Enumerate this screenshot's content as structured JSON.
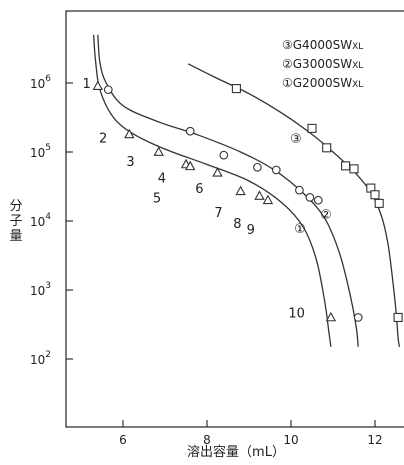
{
  "chart_data": {
    "type": "line",
    "xlabel": "溶出容量（mL）",
    "ylabel": "分子量",
    "xlim": [
      4.7,
      12.6
    ],
    "ylim_log10": [
      1.6,
      7.0
    ],
    "x_ticks": [
      "6",
      "8",
      "10",
      "12"
    ],
    "y_ticks": [
      {
        "base": "10",
        "exp": "6"
      },
      {
        "base": "10",
        "exp": "5"
      },
      {
        "base": "10",
        "exp": "4"
      },
      {
        "base": "10",
        "exp": "3"
      },
      {
        "base": "10",
        "exp": "2"
      }
    ],
    "legend": [
      {
        "prefix": "③G4000SW",
        "suffix": "XL"
      },
      {
        "prefix": "②G3000SW",
        "suffix": "XL"
      },
      {
        "prefix": "①G2000SW",
        "suffix": "XL"
      }
    ],
    "series": [
      {
        "name": "①G2000SW",
        "marker": "triangle",
        "curve_label": "①",
        "points": [
          {
            "x": 5.4,
            "y": 900000,
            "label": "1"
          },
          {
            "x": 6.15,
            "y": 180000,
            "label": "2"
          },
          {
            "x": 6.85,
            "y": 100000,
            "label": "3"
          },
          {
            "x": 7.5,
            "y": 66000,
            "label": "4"
          },
          {
            "x": 7.6,
            "y": 62000,
            "label": "5"
          },
          {
            "x": 8.25,
            "y": 50000,
            "label": "6"
          },
          {
            "x": 8.8,
            "y": 27000,
            "label": "7"
          },
          {
            "x": 9.25,
            "y": 23000,
            "label": "8"
          },
          {
            "x": 9.45,
            "y": 20000,
            "label": "9"
          },
          {
            "x": 10.95,
            "y": 400,
            "label": "10"
          }
        ],
        "curve": [
          [
            5.3,
            5000000
          ],
          [
            5.35,
            2000000
          ],
          [
            5.45,
            800000
          ],
          [
            5.75,
            330000
          ],
          [
            6.2,
            190000
          ],
          [
            7.0,
            110000
          ],
          [
            8.0,
            66000
          ],
          [
            9.0,
            38000
          ],
          [
            9.8,
            18000
          ],
          [
            10.3,
            8000
          ],
          [
            10.6,
            2800
          ],
          [
            10.8,
            700
          ],
          [
            10.9,
            250
          ],
          [
            10.95,
            150
          ]
        ]
      },
      {
        "name": "②G3000SW",
        "marker": "circle",
        "curve_label": "②",
        "points": [
          {
            "x": 5.65,
            "y": 800000
          },
          {
            "x": 7.6,
            "y": 200000
          },
          {
            "x": 8.4,
            "y": 90000
          },
          {
            "x": 9.2,
            "y": 60000
          },
          {
            "x": 9.65,
            "y": 55000
          },
          {
            "x": 10.2,
            "y": 28000
          },
          {
            "x": 10.45,
            "y": 22000
          },
          {
            "x": 10.65,
            "y": 20000
          },
          {
            "x": 11.6,
            "y": 400
          }
        ],
        "curve": [
          [
            5.4,
            5000000
          ],
          [
            5.45,
            2000000
          ],
          [
            5.6,
            1000000
          ],
          [
            6.0,
            470000
          ],
          [
            6.8,
            280000
          ],
          [
            7.8,
            175000
          ],
          [
            8.8,
            100000
          ],
          [
            9.6,
            55000
          ],
          [
            10.3,
            25000
          ],
          [
            10.8,
            11000
          ],
          [
            11.15,
            3500
          ],
          [
            11.4,
            900
          ],
          [
            11.55,
            300
          ],
          [
            11.6,
            150
          ]
        ]
      },
      {
        "name": "③G4000SW",
        "marker": "square",
        "curve_label": "③",
        "points": [
          {
            "x": 8.7,
            "y": 830000
          },
          {
            "x": 10.5,
            "y": 220000
          },
          {
            "x": 10.85,
            "y": 115000
          },
          {
            "x": 11.3,
            "y": 63000
          },
          {
            "x": 11.5,
            "y": 57000
          },
          {
            "x": 11.9,
            "y": 30000
          },
          {
            "x": 12.0,
            "y": 24000
          },
          {
            "x": 12.1,
            "y": 18000
          },
          {
            "x": 12.55,
            "y": 400
          }
        ],
        "curve": [
          [
            7.55,
            1900000
          ],
          [
            8.2,
            1200000
          ],
          [
            9.0,
            700000
          ],
          [
            9.8,
            360000
          ],
          [
            10.5,
            180000
          ],
          [
            11.0,
            100000
          ],
          [
            11.5,
            52000
          ],
          [
            11.9,
            26000
          ],
          [
            12.15,
            12000
          ],
          [
            12.3,
            5000
          ],
          [
            12.4,
            1800
          ],
          [
            12.5,
            500
          ],
          [
            12.55,
            200
          ],
          [
            12.58,
            150
          ]
        ]
      }
    ]
  }
}
